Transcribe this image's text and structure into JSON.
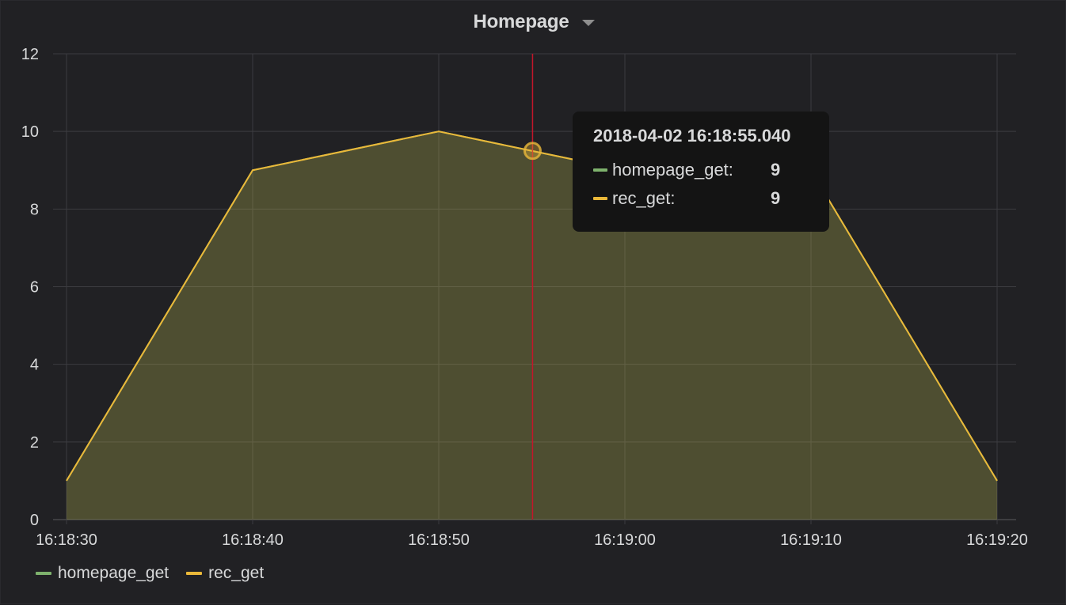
{
  "panel": {
    "title": "Homepage"
  },
  "chart_data": {
    "type": "area",
    "x": [
      "16:18:30",
      "16:18:40",
      "16:18:50",
      "16:19:00",
      "16:19:10",
      "16:19:20"
    ],
    "x_seconds": [
      0,
      10,
      20,
      30,
      40,
      50
    ],
    "xticks": [
      "16:18:30",
      "16:18:40",
      "16:18:50",
      "16:19:00",
      "16:19:10",
      "16:19:20"
    ],
    "yticks": [
      "0",
      "2",
      "4",
      "6",
      "8",
      "10",
      "12"
    ],
    "ylim": [
      0,
      12
    ],
    "grid": true,
    "legend": "bottom-left",
    "series": [
      {
        "name": "homepage_get",
        "color": "#7eb26d",
        "values": [
          1,
          9,
          10,
          9,
          9,
          1
        ]
      },
      {
        "name": "rec_get",
        "color": "#eab839",
        "values": [
          1,
          9,
          10,
          9,
          9,
          1
        ]
      }
    ],
    "cursor": {
      "x_seconds": 25.04,
      "y": 9.5,
      "color": "#c4162a"
    }
  },
  "tooltip": {
    "time": "2018-04-02 16:18:55.040",
    "rows": [
      {
        "name": "homepage_get:",
        "value": "9",
        "color": "#7eb26d"
      },
      {
        "name": "rec_get:",
        "value": "9",
        "color": "#eab839"
      }
    ]
  },
  "legend": {
    "items": [
      {
        "name": "homepage_get",
        "color": "#7eb26d"
      },
      {
        "name": "rec_get",
        "color": "#eab839"
      }
    ]
  }
}
